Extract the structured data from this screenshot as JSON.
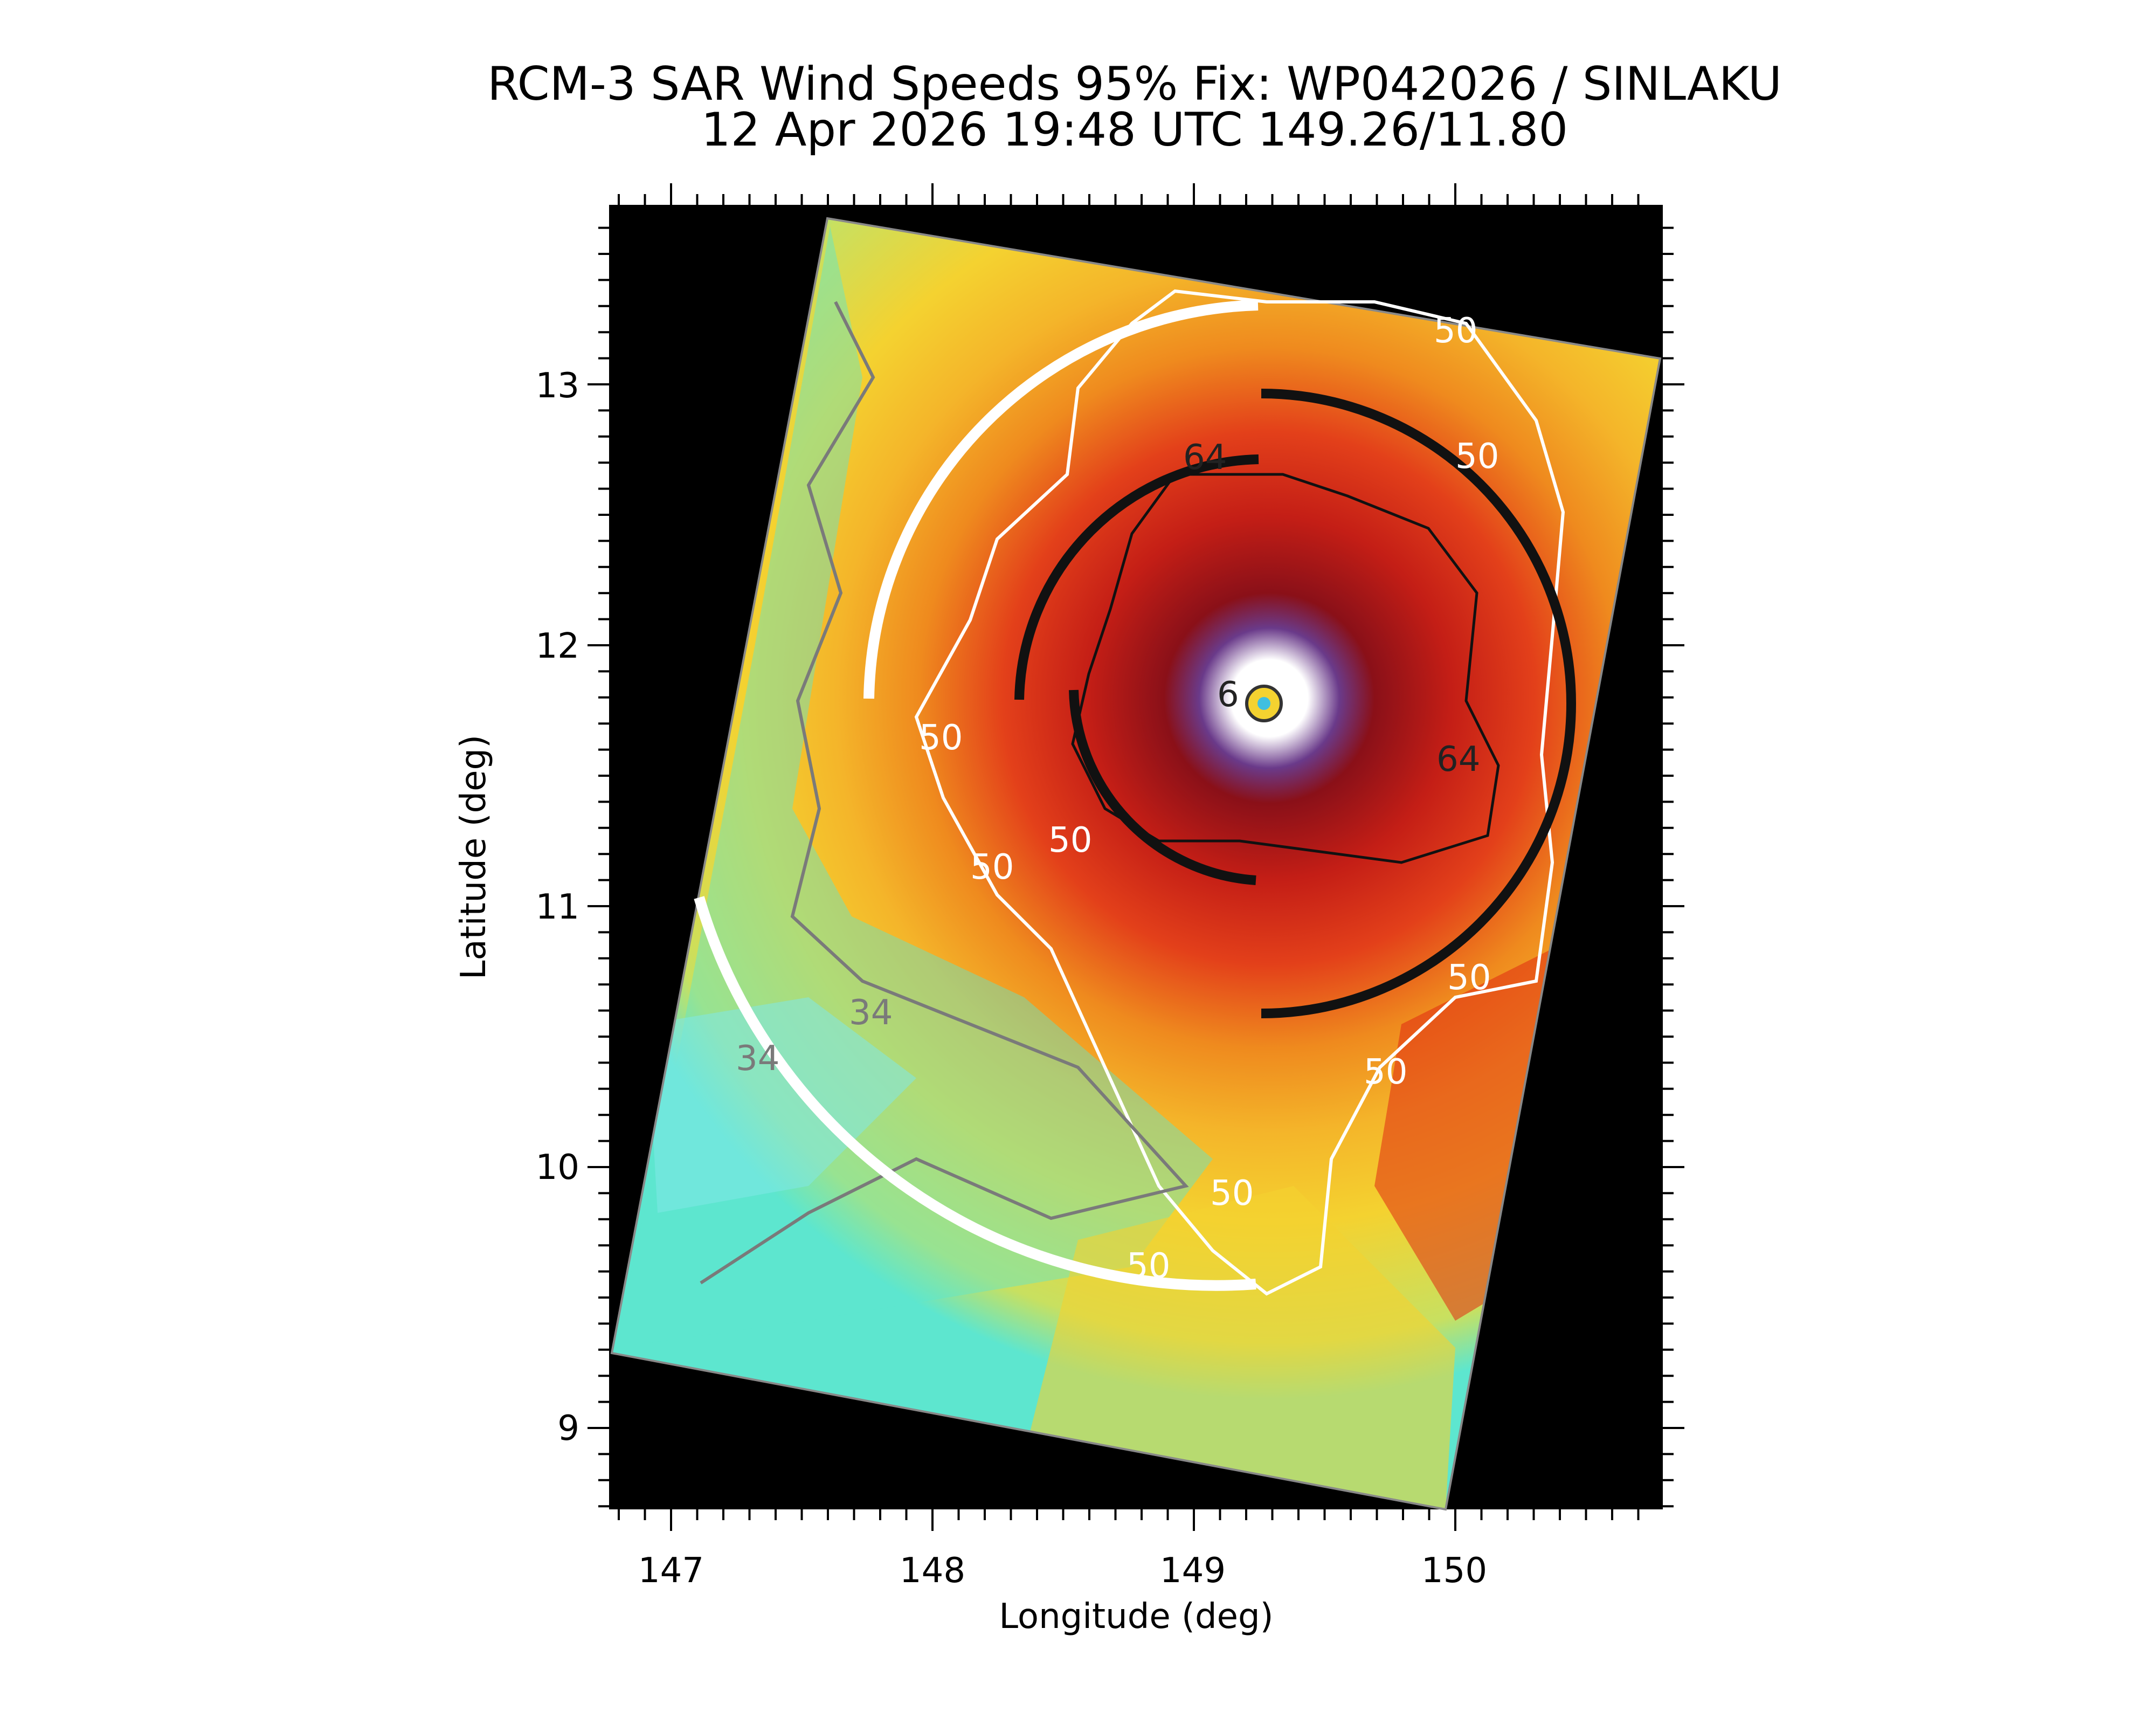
{
  "figure": {
    "title_line1": "RCM-3 SAR Wind Speeds 95% Fix: WP042026 / SINLAKU",
    "title_line2": "12 Apr 2026 19:48 UTC  149.26/11.80",
    "xlabel": "Longitude (deg)",
    "ylabel": "Latitude (deg)",
    "xticks": [
      "147",
      "148",
      "149",
      "150"
    ],
    "yticks": [
      "13",
      "12",
      "11",
      "10",
      "9"
    ]
  },
  "colors": {
    "background": "#000000",
    "yellow": "#f4d230",
    "cyan": "#5de6cf",
    "orange": "#ef8a1e",
    "red": "#e02a12",
    "darkred": "#8a1018",
    "purple": "#6a3a8a",
    "white": "#ffffff",
    "black": "#000000",
    "contour_34": "#7a7a7a"
  },
  "storm": {
    "id": "WP042026",
    "name": "SINLAKU",
    "center_lon": 149.26,
    "center_lat": 11.8
  },
  "contour_labels": {
    "l34_a": "34",
    "l34_b": "34",
    "l50_a": "50",
    "l50_b": "50",
    "l50_c": "50",
    "l50_d": "50",
    "l50_e": "50",
    "l50_f": "50",
    "l50_g": "50",
    "l50_h": "50",
    "l50_i": "50",
    "l64_a": "64",
    "l64_b": "64",
    "l_eye": "6"
  }
}
